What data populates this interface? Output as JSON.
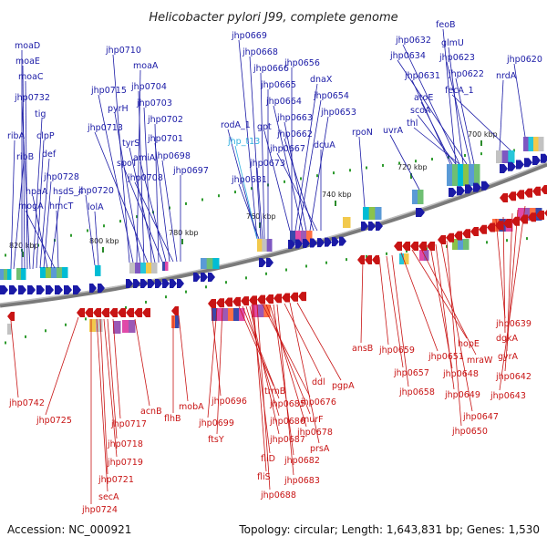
{
  "title": "Helicobacter pylori J99, complete genome",
  "footer": {
    "accession": "Accession: NC_000921",
    "summary": "Topology: circular; Length: 1,643,831 bp; Genes: 1,530"
  },
  "colors": {
    "forward": "#1a1aa6",
    "reverse": "#c81414",
    "trna": "#30b0e0",
    "backbone": "#7a7a7a"
  },
  "kbp_labels": [
    "700 kbp",
    "720 kbp",
    "740 kbp",
    "760 kbp",
    "780 kbp",
    "800 kbp",
    "820 kbp"
  ],
  "top_labels": [
    "moaD",
    "moaE",
    "moaC",
    "jhp0732",
    "tig",
    "ribA",
    "clpP",
    "ribB",
    "def",
    "jhp0728",
    "hpaA",
    "hsdS_4",
    "mogA",
    "hmcT",
    "jhp0720",
    "lolA",
    "jhp0710",
    "jhp0715",
    "moaA",
    "pyrH",
    "jhp0704",
    "jhp0713",
    "jhp0703",
    "tyrS",
    "jhp0702",
    "spoT",
    "amiA",
    "jhp0701",
    "jhp0708",
    "jhp0698",
    "jhp0697",
    "jhp0669",
    "jhp0668",
    "jhp0666",
    "jhp0665",
    "jhp0656",
    "dnaX",
    "jhp0654",
    "jhp0664",
    "jhp0663",
    "gpt",
    "jhp0653",
    "rodA_1",
    "jhp_t13",
    "jhp0662",
    "jhp0667",
    "dcuA",
    "rpoN",
    "jhp0673",
    "jhp0681",
    "feoB",
    "jhp0632",
    "glmU",
    "jhp0634",
    "jhp0623",
    "jhp0620",
    "jhp0631",
    "jhp0622",
    "nrdA",
    "fecA_1",
    "atoE",
    "scoA",
    "thl",
    "uvrA"
  ],
  "bottom_labels": [
    "jhp0742",
    "jhp0725",
    "acnB",
    "jhp0717",
    "jhp0718",
    "jhp0719",
    "jhp0721",
    "secA",
    "jhp0724",
    "flhB",
    "mobA",
    "jhp0696",
    "jhp0699",
    "ftsY",
    "trmB",
    "jhp0685",
    "jhp0686",
    "jhp0687",
    "fliD",
    "fliS",
    "jhp0688",
    "jhp0676",
    "murF",
    "jhp0678",
    "jhp0682",
    "jhp0683",
    "ddl",
    "prsA",
    "pgpA",
    "ansB",
    "jhp0659",
    "jhp0657",
    "jhp0658",
    "jhp0651",
    "hopE",
    "mraW",
    "jhp0648",
    "jhp0649",
    "jhp0647",
    "jhp0650",
    "jhp0639",
    "dgkA",
    "gyrA",
    "jhp0642",
    "jhp0643"
  ]
}
